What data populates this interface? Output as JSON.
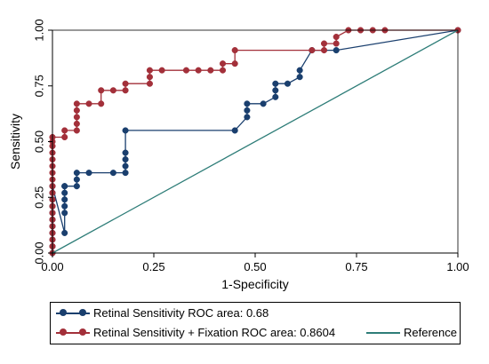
{
  "chart_data": {
    "type": "line",
    "xlabel": "1-Specificity",
    "ylabel": "Sensitivity",
    "xlim": [
      0,
      1
    ],
    "ylim": [
      0,
      1
    ],
    "xticks": [
      "0.00",
      "0.25",
      "0.50",
      "0.75",
      "1.00"
    ],
    "yticks": [
      "0.00",
      "0.25",
      "0.50",
      "0.75",
      "1.00"
    ],
    "grid": false,
    "legend_position": "bottom",
    "series": [
      {
        "name": "Retinal Sensitivity ROC area: 0.68",
        "color": "#1a3f6e",
        "markers": true,
        "x": [
          0,
          0,
          0,
          0,
          0,
          0,
          0,
          0,
          0,
          0,
          0,
          0.03,
          0.03,
          0.03,
          0.03,
          0.03,
          0.03,
          0.03,
          0.06,
          0.06,
          0.06,
          0.09,
          0.15,
          0.18,
          0.18,
          0.18,
          0.18,
          0.18,
          0.45,
          0.48,
          0.48,
          0.48,
          0.52,
          0.55,
          0.55,
          0.55,
          0.58,
          0.61,
          0.61,
          0.64,
          0.7,
          1.0
        ],
        "y": [
          0,
          0.03,
          0.06,
          0.09,
          0.12,
          0.15,
          0.18,
          0.21,
          0.24,
          0.27,
          0.3,
          0.09,
          0.18,
          0.21,
          0.24,
          0.27,
          0.3,
          0.3,
          0.3,
          0.33,
          0.36,
          0.36,
          0.36,
          0.36,
          0.39,
          0.42,
          0.45,
          0.55,
          0.55,
          0.61,
          0.64,
          0.67,
          0.67,
          0.7,
          0.73,
          0.76,
          0.76,
          0.79,
          0.82,
          0.91,
          0.91,
          1.0
        ]
      },
      {
        "name": "Retinal Sensitivity + Fixation ROC area: 0.8604",
        "color": "#a3303a",
        "markers": true,
        "x": [
          0,
          0,
          0,
          0,
          0,
          0,
          0,
          0,
          0,
          0,
          0,
          0,
          0,
          0,
          0,
          0,
          0,
          0,
          0,
          0.03,
          0.03,
          0.06,
          0.06,
          0.06,
          0.06,
          0.06,
          0.09,
          0.12,
          0.12,
          0.15,
          0.18,
          0.18,
          0.24,
          0.24,
          0.24,
          0.27,
          0.33,
          0.36,
          0.39,
          0.42,
          0.42,
          0.45,
          0.45,
          0.64,
          0.67,
          0.67,
          0.7,
          0.7,
          0.73,
          0.76,
          0.79,
          0.82,
          1.0
        ],
        "y": [
          0,
          0.03,
          0.06,
          0.09,
          0.12,
          0.15,
          0.18,
          0.21,
          0.24,
          0.27,
          0.3,
          0.33,
          0.36,
          0.39,
          0.42,
          0.45,
          0.48,
          0.5,
          0.52,
          0.52,
          0.55,
          0.55,
          0.58,
          0.61,
          0.64,
          0.67,
          0.67,
          0.67,
          0.73,
          0.73,
          0.73,
          0.76,
          0.76,
          0.79,
          0.82,
          0.82,
          0.82,
          0.82,
          0.82,
          0.82,
          0.85,
          0.85,
          0.91,
          0.91,
          0.91,
          0.94,
          0.94,
          0.97,
          1.0,
          1.0,
          1.0,
          1.0,
          1.0
        ]
      },
      {
        "name": "Reference",
        "color": "#2e7d78",
        "markers": false,
        "x": [
          0,
          1
        ],
        "y": [
          0,
          1
        ]
      }
    ]
  }
}
